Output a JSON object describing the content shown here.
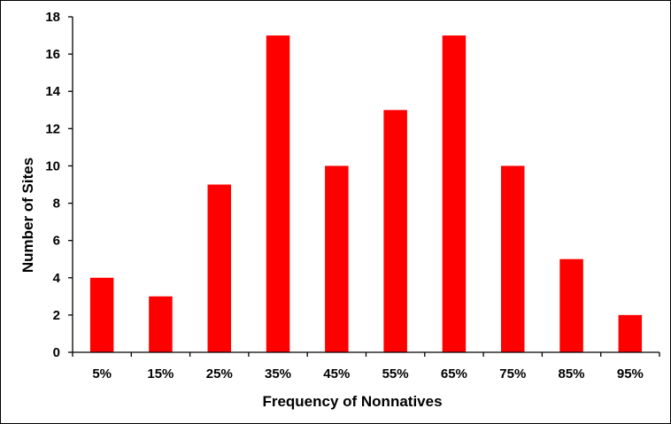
{
  "chart_data": {
    "type": "bar",
    "categories": [
      "5%",
      "15%",
      "25%",
      "35%",
      "45%",
      "55%",
      "65%",
      "75%",
      "85%",
      "95%"
    ],
    "values": [
      4,
      3,
      9,
      17,
      10,
      13,
      17,
      10,
      5,
      2
    ],
    "title": "",
    "xlabel": "Frequency of Nonnatives",
    "ylabel": "Number of Sites",
    "ylim": [
      0,
      18
    ],
    "yticks": [
      0,
      2,
      4,
      6,
      8,
      10,
      12,
      14,
      16,
      18
    ],
    "grid": false,
    "legend": "none",
    "bar_color": "#ff0000",
    "axis_color": "#000000"
  }
}
